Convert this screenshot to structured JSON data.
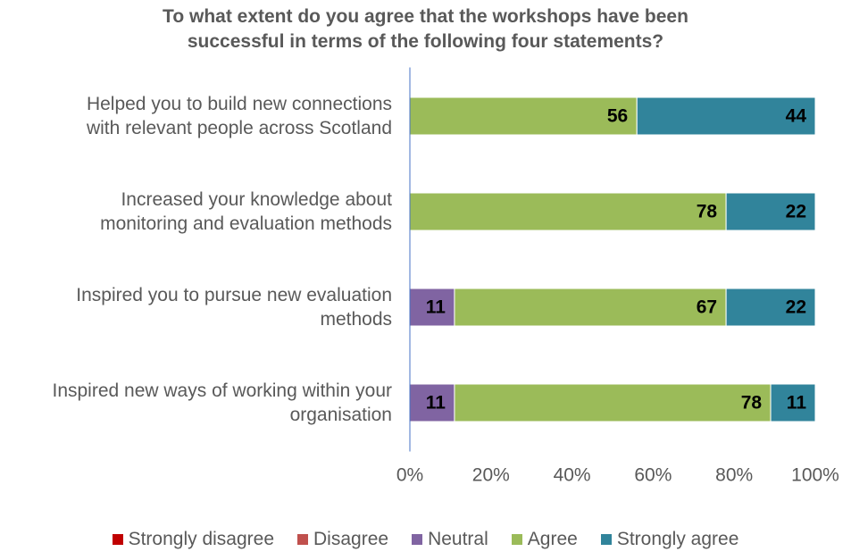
{
  "chart_data": {
    "type": "stacked-barh",
    "title": "To what extent do you agree that the workshops have been\nsuccessful in terms of the following four statements?",
    "categories": [
      "Helped you to build new connections\nwith relevant people across Scotland",
      "Increased your knowledge about \nmonitoring and evaluation methods",
      "Inspired you to pursue new evaluation\nmethods",
      "Inspired new ways of working within your\norganisation"
    ],
    "series": [
      {
        "name": "Strongly disagree",
        "color": "#c00000",
        "values": [
          0,
          0,
          0,
          0
        ]
      },
      {
        "name": "Disagree",
        "color": "#c0504d",
        "values": [
          0,
          0,
          0,
          0
        ]
      },
      {
        "name": "Neutral",
        "color": "#8064a2",
        "values": [
          0,
          0,
          11,
          11
        ]
      },
      {
        "name": "Agree",
        "color": "#9bbb59",
        "values": [
          56,
          78,
          67,
          78
        ]
      },
      {
        "name": "Strongly agree",
        "color": "#31849b",
        "values": [
          44,
          22,
          22,
          11
        ]
      }
    ],
    "xlim": [
      0,
      100
    ],
    "xticks": [
      {
        "value": 0,
        "label": "0%"
      },
      {
        "value": 20,
        "label": "20%"
      },
      {
        "value": 40,
        "label": "40%"
      },
      {
        "value": 60,
        "label": "60%"
      },
      {
        "value": 80,
        "label": "80%"
      },
      {
        "value": 100,
        "label": "100%"
      }
    ],
    "legend": "bottom"
  }
}
